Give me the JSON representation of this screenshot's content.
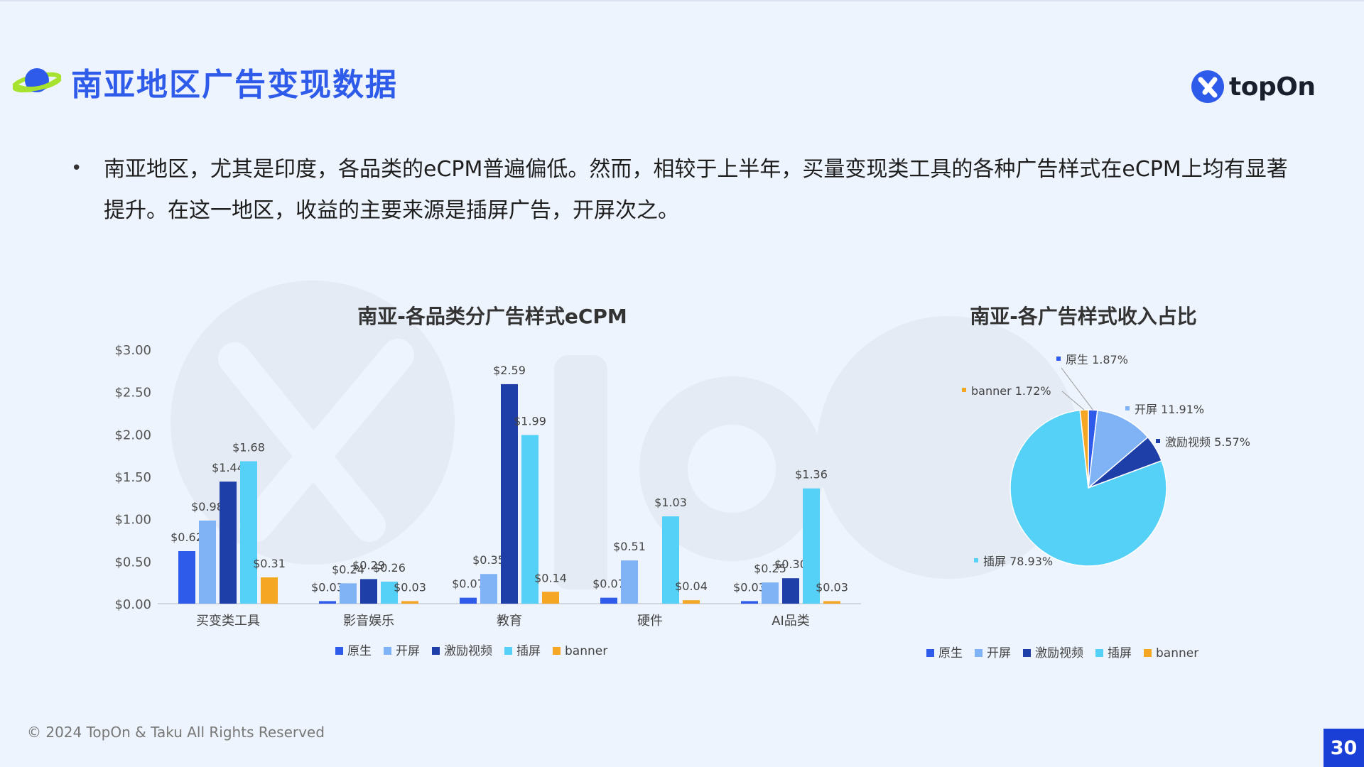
{
  "header": {
    "title": "南亚地区广告变现数据",
    "logo_text": "topOn"
  },
  "body": {
    "bullet": "南亚地区，尤其是印度，各品类的eCPM普遍偏低。然而，相较于上半年，买量变现类工具的各种广告样式在eCPM上均有显著提升。在这一地区，收益的主要来源是插屏广告，开屏次之。"
  },
  "colors": {
    "原生": "#2f5bea",
    "开屏": "#7fb3f5",
    "激励视频": "#1e3fa8",
    "插屏": "#55d0f7",
    "banner": "#f5a623",
    "title": "#2f5bea",
    "page_badge": "#1a3fd6"
  },
  "chart_data": [
    {
      "type": "bar",
      "title": "南亚-各品类分广告样式eCPM",
      "categories": [
        "买变类工具",
        "影音娱乐",
        "教育",
        "硬件",
        "AI品类"
      ],
      "series": [
        {
          "name": "原生",
          "values": [
            0.62,
            0.03,
            0.07,
            0.07,
            0.03
          ]
        },
        {
          "name": "开屏",
          "values": [
            0.98,
            0.24,
            0.35,
            0.51,
            0.25
          ]
        },
        {
          "name": "激励视频",
          "values": [
            1.44,
            0.29,
            2.59,
            null,
            0.3
          ]
        },
        {
          "name": "插屏",
          "values": [
            1.68,
            0.26,
            1.99,
            1.03,
            1.36
          ]
        },
        {
          "name": "banner",
          "values": [
            0.31,
            0.03,
            0.14,
            0.04,
            0.03
          ]
        }
      ],
      "data_labels": [
        [
          "$0.62",
          "$0.03",
          "$0.07",
          "$0.07",
          "$0.03"
        ],
        [
          "$0.98",
          "$0.24",
          "$0.35",
          "$0.51",
          "$0.25"
        ],
        [
          "$1.44",
          "$0.29",
          "$2.59",
          "",
          "$0.30"
        ],
        [
          "$1.68",
          "$0.26",
          "$1.99",
          "$1.03",
          "$1.36"
        ],
        [
          "$0.31",
          "$0.03",
          "$0.14",
          "$0.04",
          "$0.03"
        ]
      ],
      "ylim": [
        0,
        3
      ],
      "yticks": [
        0,
        0.5,
        1,
        1.5,
        2,
        2.5,
        3
      ],
      "ytick_labels": [
        "$0.00",
        "$0.50",
        "$1.00",
        "$1.50",
        "$2.00",
        "$2.50",
        "$3.00"
      ],
      "legend": [
        "原生",
        "开屏",
        "激励视频",
        "插屏",
        "banner"
      ],
      "legend_position": "bottom",
      "grid": false
    },
    {
      "type": "pie",
      "title": "南亚-各广告样式收入占比",
      "slices": [
        {
          "name": "原生",
          "value": 1.87,
          "label": "原生 1.87%"
        },
        {
          "name": "开屏",
          "value": 11.91,
          "label": "开屏 11.91%"
        },
        {
          "name": "激励视频",
          "value": 5.57,
          "label": "激励视频 5.57%"
        },
        {
          "name": "插屏",
          "value": 78.93,
          "label": "插屏 78.93%"
        },
        {
          "name": "banner",
          "value": 1.72,
          "label": "banner 1.72%"
        }
      ],
      "legend": [
        "原生",
        "开屏",
        "激励视频",
        "插屏",
        "banner"
      ],
      "legend_position": "bottom"
    }
  ],
  "footer": {
    "copyright": "© 2024 TopOn & Taku All Rights Reserved",
    "page_number": "30"
  }
}
